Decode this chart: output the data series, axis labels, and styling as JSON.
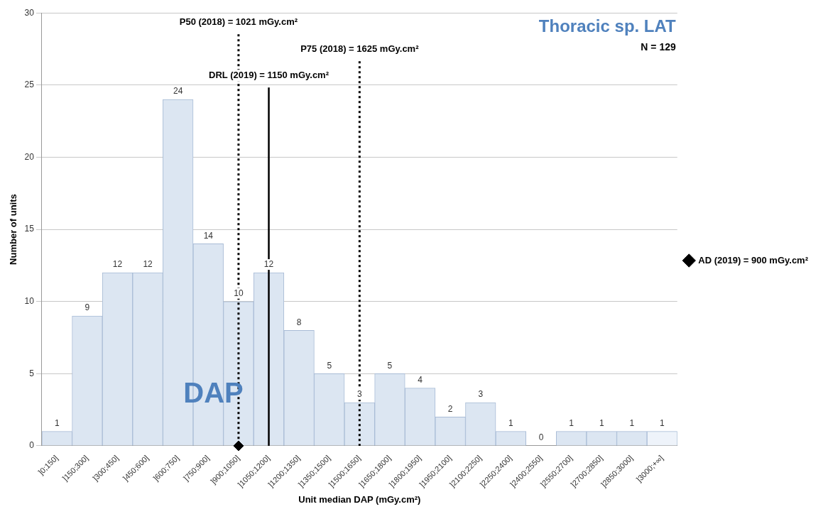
{
  "chart_data": {
    "type": "bar",
    "title": "Thoracic sp. LAT",
    "subtitle": "N = 129",
    "xlabel": "Unit median DAP (mGy.cm²)",
    "ylabel": "Number of units",
    "categories": [
      "]0;150]",
      "]150;300]",
      "]300;450]",
      "]450;600]",
      "]600;750]",
      "]750;900]",
      "]900;1050]",
      "]1050;1200]",
      "]1200;1350]",
      "]1350;1500]",
      "]1500;1650]",
      "]1650;1800]",
      "]1800;1950]",
      "]1950;2100]",
      "]2100;2250]",
      "]2250;2400]",
      "]2400;2550]",
      "]2550;2700]",
      "]2700;2850]",
      "]2850;3000]",
      "]3000;+∞]"
    ],
    "values": [
      1,
      9,
      12,
      12,
      24,
      14,
      10,
      12,
      8,
      5,
      3,
      5,
      4,
      2,
      3,
      1,
      0,
      1,
      1,
      1,
      1
    ],
    "colors": [
      "#dce6f2",
      "#dce6f2",
      "#dce6f2",
      "#dce6f2",
      "#dce6f2",
      "#dce6f2",
      "#dce6f2",
      "#dce6f2",
      "#dce6f2",
      "#dce6f2",
      "#dce6f2",
      "#dce6f2",
      "#dce6f2",
      "#dce6f2",
      "#dce6f2",
      "#dce6f2",
      "#dce6f2",
      "#dce6f2",
      "#dce6f2",
      "#dce6f2",
      "#eef3fa"
    ],
    "value_labels": [
      "1",
      "9",
      "12",
      "12",
      "24",
      "14",
      "10",
      "12",
      "8",
      "5",
      "3",
      "5",
      "4",
      "2",
      "3",
      "1",
      "0",
      "1",
      "1",
      "1",
      "1"
    ],
    "ylim": [
      0,
      30
    ],
    "yticks": [
      0,
      5,
      10,
      15,
      20,
      25,
      30
    ],
    "grid": "y",
    "ref_lines": [
      {
        "axis": "x",
        "value": "]900;1050]",
        "label": "P50 (2018) = 1021 mGy.cm²",
        "line_style": "dotted",
        "color": "#000000"
      },
      {
        "axis": "x",
        "value": "]1050;1200]",
        "label": "DRL (2019) = 1150 mGy.cm²",
        "line_style": "solid",
        "color": "#000000"
      },
      {
        "axis": "x",
        "value": "]1500;1650]",
        "label": "P75 (2018) = 1625 mGy.cm²",
        "line_style": "dotted",
        "color": "#000000"
      }
    ],
    "series": [
      {
        "type": "scatter",
        "name": "AD (2019) = 900 mGy.cm²",
        "color": "#000000",
        "values": [
          null,
          null,
          null,
          null,
          null,
          null,
          0,
          null,
          null,
          null,
          null,
          null,
          null,
          null,
          null,
          null,
          null,
          null,
          null,
          null,
          null
        ]
      }
    ],
    "marker": "diamond",
    "legend": "right",
    "annotations": [
      "DAP"
    ]
  }
}
